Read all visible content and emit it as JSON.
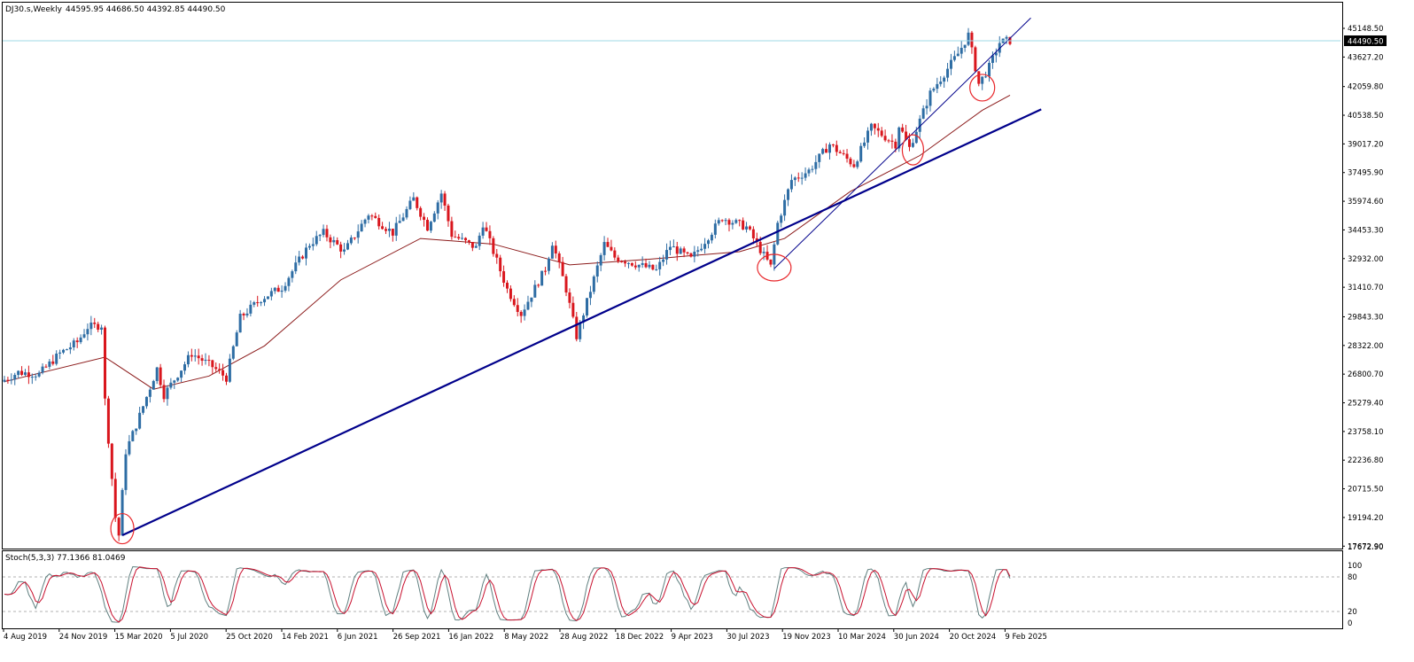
{
  "header": {
    "symbol": "DJ30.s,Weekly",
    "ohlc": "44595.95 44686.50 44392.85 44490.50"
  },
  "last_price": "44490.50",
  "price_axis": {
    "labels": [
      "45148.50",
      "43627.20",
      "42059.80",
      "40538.50",
      "39017.20",
      "37495.90",
      "35974.60",
      "34453.30",
      "32932.00",
      "31410.70",
      "29843.30",
      "28322.00",
      "26800.70",
      "25279.40",
      "23758.10",
      "22236.80",
      "20715.50",
      "19194.20",
      "17672.90"
    ]
  },
  "stoch_panel": {
    "label": "Stoch(5,3,3) 77.1366 81.0469",
    "axis_labels": [
      "100",
      "80",
      "20",
      "0"
    ],
    "levels": [
      80,
      20
    ]
  },
  "time_axis": {
    "labels": [
      "4 Aug 2019",
      "24 Nov 2019",
      "15 Mar 2020",
      "5 Jul 2020",
      "25 Oct 2020",
      "14 Feb 2021",
      "6 Jun 2021",
      "26 Sep 2021",
      "16 Jan 2022",
      "8 May 2022",
      "28 Aug 2022",
      "18 Dec 2022",
      "9 Apr 2023",
      "30 Jul 2023",
      "19 Nov 2023",
      "10 Mar 2024",
      "30 Jun 2024",
      "20 Oct 2024",
      "9 Feb 2025"
    ]
  },
  "colors": {
    "bull": "#2e6da4",
    "bear": "#d9161d",
    "ma": "#8b1a1a",
    "trendline": "#00008b",
    "stoch_main": "#5f7f7f",
    "stoch_signal": "#c8102e",
    "circle": "#e8262a",
    "last_price_line": "#9fd8e6"
  },
  "chart_data": {
    "type": "candlestick",
    "timeframe": "weekly",
    "symbol": "DJ30.s",
    "x_range": [
      "2019-07-28",
      "2025-02-16"
    ],
    "ylim": [
      17672.9,
      46000
    ],
    "price_path": [
      [
        "2019-07-28",
        26400
      ],
      [
        "2019-09-01",
        26900
      ],
      [
        "2019-10-13",
        26800
      ],
      [
        "2019-11-24",
        27900
      ],
      [
        "2019-12-29",
        28500
      ],
      [
        "2020-01-19",
        29300
      ],
      [
        "2020-02-16",
        29400
      ],
      [
        "2020-02-23",
        25400
      ],
      [
        "2020-03-15",
        19200
      ],
      [
        "2020-03-22",
        18250
      ],
      [
        "2020-04-05",
        22700
      ],
      [
        "2020-04-26",
        24100
      ],
      [
        "2020-06-07",
        27100
      ],
      [
        "2020-06-21",
        25700
      ],
      [
        "2020-08-16",
        27900
      ],
      [
        "2020-09-27",
        27200
      ],
      [
        "2020-10-25",
        26600
      ],
      [
        "2020-11-22",
        29800
      ],
      [
        "2021-01-03",
        30800
      ],
      [
        "2021-02-14",
        31400
      ],
      [
        "2021-04-11",
        33700
      ],
      [
        "2021-05-09",
        34300
      ],
      [
        "2021-06-20",
        33300
      ],
      [
        "2021-08-08",
        35300
      ],
      [
        "2021-09-26",
        34300
      ],
      [
        "2021-11-07",
        36100
      ],
      [
        "2021-12-05",
        34600
      ],
      [
        "2022-01-02",
        36400
      ],
      [
        "2022-01-23",
        34200
      ],
      [
        "2022-03-13",
        33500
      ],
      [
        "2022-03-27",
        34800
      ],
      [
        "2022-05-15",
        31300
      ],
      [
        "2022-06-12",
        30000
      ],
      [
        "2022-07-31",
        32400
      ],
      [
        "2022-08-14",
        33800
      ],
      [
        "2022-09-11",
        31300
      ],
      [
        "2022-10-02",
        28800
      ],
      [
        "2022-11-27",
        33700
      ],
      [
        "2022-12-18",
        33000
      ],
      [
        "2023-03-12",
        32300
      ],
      [
        "2023-04-09",
        33600
      ],
      [
        "2023-05-21",
        32900
      ],
      [
        "2023-07-23",
        35100
      ],
      [
        "2023-09-10",
        34600
      ],
      [
        "2023-10-29",
        32500
      ],
      [
        "2023-11-12",
        34800
      ],
      [
        "2023-12-10",
        37100
      ],
      [
        "2024-01-14",
        37600
      ],
      [
        "2024-02-25",
        39000
      ],
      [
        "2024-04-14",
        37900
      ],
      [
        "2024-05-19",
        39900
      ],
      [
        "2024-07-07",
        39000
      ],
      [
        "2024-07-14",
        40000
      ],
      [
        "2024-08-04",
        38800
      ],
      [
        "2024-09-15",
        41700
      ],
      [
        "2024-11-10",
        43800
      ],
      [
        "2024-12-01",
        44800
      ],
      [
        "2024-12-22",
        42200
      ],
      [
        "2025-01-12",
        43100
      ],
      [
        "2025-02-02",
        44400
      ],
      [
        "2025-02-16",
        44490.5
      ]
    ],
    "moving_average": [
      [
        "2019-07-28",
        26400
      ],
      [
        "2020-02-16",
        27700
      ],
      [
        "2020-05-24",
        26000
      ],
      [
        "2020-09-13",
        26700
      ],
      [
        "2021-01-03",
        28300
      ],
      [
        "2021-06-06",
        31800
      ],
      [
        "2021-11-14",
        34000
      ],
      [
        "2022-04-10",
        33700
      ],
      [
        "2022-09-11",
        32600
      ],
      [
        "2023-02-19",
        32900
      ],
      [
        "2023-08-20",
        33300
      ],
      [
        "2023-11-19",
        34000
      ],
      [
        "2024-03-31",
        36500
      ],
      [
        "2024-08-18",
        38400
      ],
      [
        "2024-12-22",
        40800
      ],
      [
        "2025-02-16",
        41600
      ]
    ],
    "trendlines": [
      {
        "from": [
          "2020-03-22",
          18250
        ],
        "to": [
          "2025-04-20",
          40850
        ]
      },
      {
        "from": [
          "2023-10-29",
          32400
        ],
        "to": [
          "2025-03-30",
          45700
        ]
      }
    ],
    "circled_points": [
      [
        "2020-03-22",
        18600
      ],
      [
        "2023-10-29",
        32450
      ],
      [
        "2024-08-04",
        38700
      ],
      [
        "2024-12-22",
        42000
      ]
    ],
    "stochastic": {
      "main": 77.1366,
      "signal": 81.0469
    }
  }
}
